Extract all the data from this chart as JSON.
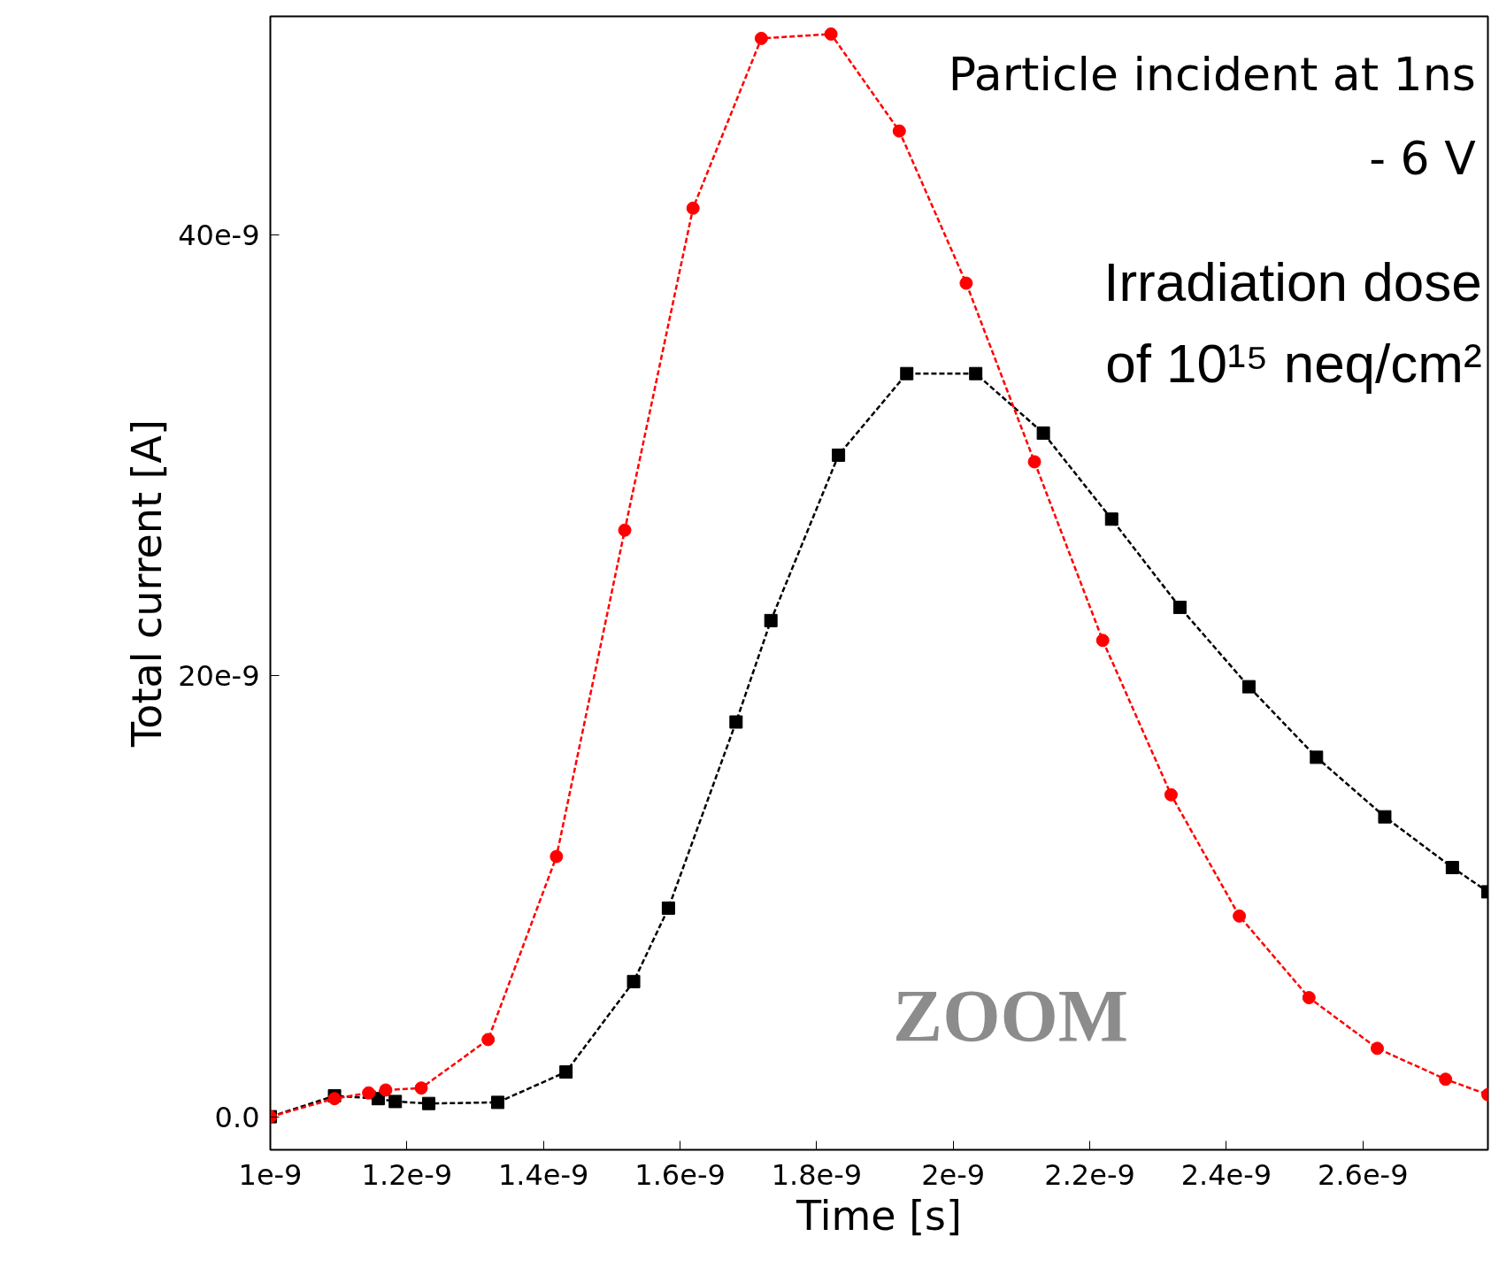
{
  "chart_data": {
    "type": "line",
    "xlabel": "Time [s]",
    "ylabel": "Total current [A]",
    "xlim": [
      1e-09,
      2.783e-09
    ],
    "ylim": [
      -1.5e-09,
      4.99e-08
    ],
    "xticks": [
      {
        "value": 1e-09,
        "label": "1e-9"
      },
      {
        "value": 1.2e-09,
        "label": "1.2e-9"
      },
      {
        "value": 1.4e-09,
        "label": "1.4e-9"
      },
      {
        "value": 1.6e-09,
        "label": "1.6e-9"
      },
      {
        "value": 1.8e-09,
        "label": "1.8e-9"
      },
      {
        "value": 2e-09,
        "label": "2e-9"
      },
      {
        "value": 2.2e-09,
        "label": "2.2e-9"
      },
      {
        "value": 2.4e-09,
        "label": "2.4e-9"
      },
      {
        "value": 2.6e-09,
        "label": "2.6e-9"
      }
    ],
    "yticks": [
      {
        "value": 0,
        "label": "0.0"
      },
      {
        "value": 2e-08,
        "label": "20e-9"
      },
      {
        "value": 4e-08,
        "label": "40e-9"
      }
    ],
    "grid": false,
    "line_style": "dashed",
    "series": [
      {
        "color": "#ff0000",
        "marker": "circle",
        "x": [
          1e-09,
          1.094e-09,
          1.144e-09,
          1.169e-09,
          1.221e-09,
          1.319e-09,
          1.419e-09,
          1.519e-09,
          1.619e-09,
          1.719e-09,
          1.821e-09,
          1.921e-09,
          2.019e-09,
          2.119e-09,
          2.219e-09,
          2.319e-09,
          2.419e-09,
          2.521e-09,
          2.621e-09,
          2.721e-09,
          2.783e-09
        ],
        "values": [
          0,
          8.2e-10,
          1.08e-09,
          1.21e-09,
          1.3e-09,
          3.5e-09,
          1.18e-08,
          2.66e-08,
          4.12e-08,
          4.89e-08,
          4.91e-08,
          4.47e-08,
          3.78e-08,
          2.97e-08,
          2.16e-08,
          1.46e-08,
          9.1e-09,
          5.4e-09,
          3.1e-09,
          1.7e-09,
          1e-09
        ]
      },
      {
        "color": "#000000",
        "marker": "square",
        "x": [
          1e-09,
          1.094e-09,
          1.158e-09,
          1.183e-09,
          1.232e-09,
          1.333e-09,
          1.433e-09,
          1.532e-09,
          1.583e-09,
          1.682e-09,
          1.733e-09,
          1.832e-09,
          1.932e-09,
          2.033e-09,
          2.132e-09,
          2.232e-09,
          2.332e-09,
          2.433e-09,
          2.532e-09,
          2.632e-09,
          2.731e-09,
          2.783e-09
        ],
        "values": [
          0,
          9.5e-10,
          8.2e-10,
          6.9e-10,
          6e-10,
          6.5e-10,
          2.03e-09,
          6.13e-09,
          9.46e-09,
          1.79e-08,
          2.25e-08,
          3e-08,
          3.37e-08,
          3.37e-08,
          3.1e-08,
          2.71e-08,
          2.31e-08,
          1.95e-08,
          1.63e-08,
          1.36e-08,
          1.13e-08,
          1.02e-08
        ]
      }
    ],
    "annotations": [
      "Particle incident at 1ns",
      "- 6 V",
      "Irradiation dose",
      "of 10¹⁵ neq/cm²",
      "ZOOM"
    ]
  }
}
